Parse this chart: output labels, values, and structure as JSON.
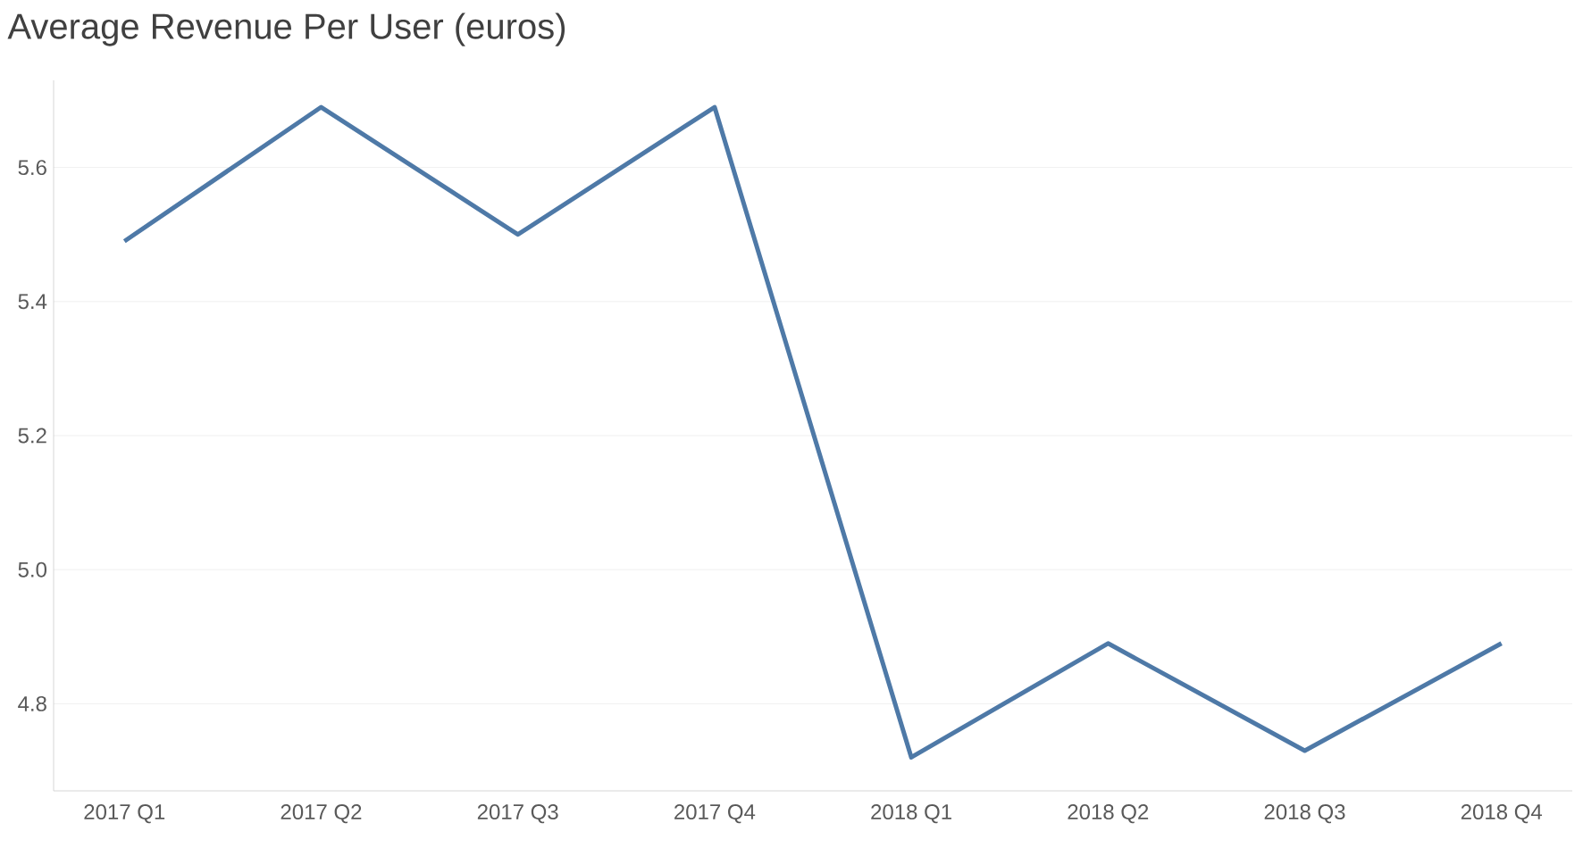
{
  "chart_data": {
    "type": "line",
    "title": "Average Revenue Per User (euros)",
    "categories": [
      "2017 Q1",
      "2017 Q2",
      "2017 Q3",
      "2017 Q4",
      "2018 Q1",
      "2018 Q2",
      "2018 Q3",
      "2018 Q4"
    ],
    "values": [
      5.49,
      5.69,
      5.5,
      5.69,
      4.72,
      4.89,
      4.73,
      4.89
    ],
    "color": "#4e79a7",
    "ylim": [
      4.67,
      5.73
    ],
    "yticks": [
      {
        "value": 4.8,
        "label": "4.8"
      },
      {
        "value": 5.0,
        "label": "5.0"
      },
      {
        "value": 5.2,
        "label": "5.2"
      },
      {
        "value": 5.4,
        "label": "5.4"
      },
      {
        "value": 5.6,
        "label": "5.6"
      }
    ],
    "grid": "y",
    "marker": "none",
    "line_style": "solid"
  }
}
